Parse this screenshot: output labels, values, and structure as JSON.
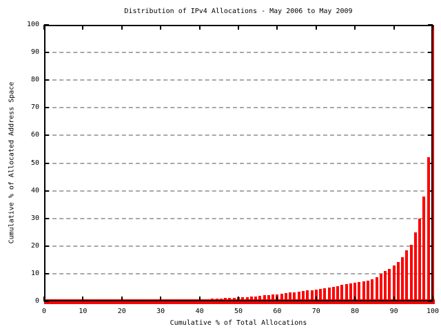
{
  "chart_data": {
    "type": "bar",
    "title": "Distribution of IPv4 Allocations - May 2006 to May 2009",
    "xlabel": "Cumulative % of Total Allocations",
    "ylabel": "Cumulative % of Allocated Address Space",
    "xlim": [
      0,
      100
    ],
    "ylim": [
      0,
      100
    ],
    "xticks": [
      0,
      10,
      20,
      30,
      40,
      50,
      60,
      70,
      80,
      90,
      100
    ],
    "yticks": [
      0,
      10,
      20,
      30,
      40,
      50,
      60,
      70,
      80,
      90,
      100
    ],
    "grid": "horizontal-dashed-gray",
    "legend": "none",
    "bar_color": "#ff0000",
    "baseline_color": "#ff0000",
    "frame_color": "#000000",
    "gridline_color": "#a8a8a8",
    "x": [
      1.11,
      2.22,
      3.33,
      4.44,
      5.56,
      6.67,
      7.78,
      8.89,
      10,
      11.11,
      12.22,
      13.33,
      14.44,
      15.56,
      16.67,
      17.78,
      18.89,
      20,
      21.11,
      22.22,
      23.33,
      24.44,
      25.56,
      26.67,
      27.78,
      28.89,
      30,
      31.11,
      32.22,
      33.33,
      34.44,
      35.56,
      36.67,
      37.78,
      38.89,
      40,
      41.11,
      42.22,
      43.33,
      44.44,
      45.56,
      46.67,
      47.78,
      48.89,
      50,
      51.11,
      52.22,
      53.33,
      54.44,
      55.56,
      56.67,
      57.78,
      58.89,
      60,
      61.11,
      62.22,
      63.33,
      64.44,
      65.56,
      66.67,
      67.78,
      68.89,
      70,
      71.11,
      72.22,
      73.33,
      74.44,
      75.56,
      76.67,
      77.78,
      78.89,
      80,
      81.11,
      82.22,
      83.33,
      84.44,
      85.56,
      86.67,
      87.78,
      88.89,
      90,
      91.11,
      92.22,
      93.33,
      94.44,
      95.56,
      96.67,
      97.78,
      98.89,
      100
    ],
    "y": [
      0.03,
      0.03,
      0.04,
      0.05,
      0.05,
      0.06,
      0.07,
      0.07,
      0.08,
      0.09,
      0.11,
      0.12,
      0.13,
      0.15,
      0.16,
      0.17,
      0.19,
      0.2,
      0.22,
      0.25,
      0.27,
      0.3,
      0.32,
      0.35,
      0.37,
      0.4,
      0.42,
      0.46,
      0.49,
      0.53,
      0.57,
      0.6,
      0.64,
      0.68,
      0.71,
      0.75,
      0.81,
      0.86,
      0.92,
      0.97,
      1.04,
      1.13,
      1.22,
      1.31,
      1.4,
      1.51,
      1.62,
      1.73,
      1.84,
      1.98,
      2.13,
      2.29,
      2.44,
      2.6,
      2.78,
      2.96,
      3.13,
      3.31,
      3.5,
      3.7,
      3.9,
      4.1,
      4.3,
      4.54,
      4.79,
      5.03,
      5.28,
      5.56,
      5.87,
      6.18,
      6.49,
      6.8,
      7.0,
      7.2,
      7.5,
      8.0,
      8.8,
      10.0,
      11.0,
      11.7,
      13.0,
      14.2,
      16.0,
      18.5,
      20.5,
      25.0,
      30.0,
      38.0,
      52.0,
      100.0
    ]
  }
}
